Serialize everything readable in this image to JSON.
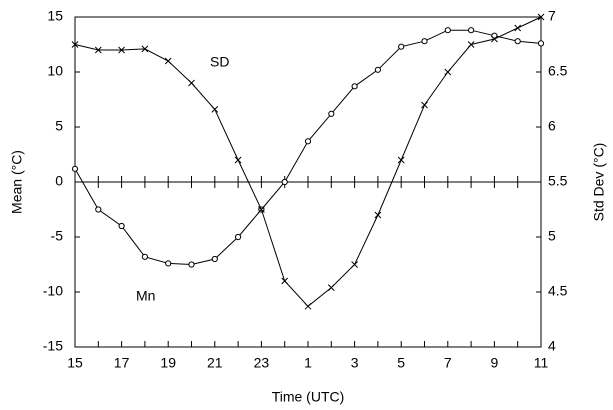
{
  "chart_data": {
    "type": "line",
    "categories": [
      "15",
      null,
      "17",
      null,
      "19",
      null,
      "21",
      null,
      "23",
      null,
      "1",
      null,
      "3",
      null,
      "5",
      null,
      "7",
      null,
      "9",
      null,
      "11"
    ],
    "series": [
      {
        "name": "Mn",
        "color": "#000000",
        "marker": "circle",
        "values": [
          1.2,
          -2.5,
          -4,
          -6.8,
          -7.4,
          -7.5,
          -7,
          -5,
          -2.5,
          0,
          3.7,
          6.2,
          8.7,
          10.2,
          12.3,
          12.8,
          13.8,
          13.8,
          13.3,
          12.8,
          12.6
        ]
      },
      {
        "name": "SD",
        "color": "#000000",
        "marker": "x",
        "axis": "y2",
        "values": [
          6.75,
          6.7,
          6.7,
          6.71,
          6.6,
          6.4,
          6.16,
          5.7,
          5.25,
          4.6,
          4.37,
          4.54,
          4.75,
          5.2,
          5.7,
          6.2,
          6.5,
          6.75,
          6.8,
          6.9,
          7.0
        ]
      }
    ],
    "xlabel": "Time (UTC)",
    "ylabel": "Mean (°C)",
    "y2label": "Std Dev (°C)",
    "ylim": [
      -15,
      15
    ],
    "yticks": [
      -15,
      -10,
      -5,
      0,
      5,
      10,
      15
    ],
    "y2lim": [
      4,
      7
    ],
    "y2ticks": [
      4,
      4.5,
      5,
      5.5,
      6,
      6.5,
      7
    ],
    "annotations": [
      {
        "text": "SD",
        "series": 1
      },
      {
        "text": "Mn",
        "series": 0
      }
    ]
  }
}
